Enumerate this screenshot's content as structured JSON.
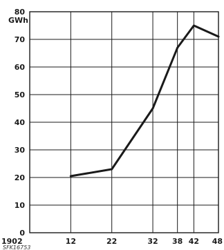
{
  "chart_data": {
    "type": "line",
    "ylabel": "GWh",
    "ylim": [
      0,
      80
    ],
    "yticks": [
      0,
      10,
      20,
      30,
      40,
      50,
      60,
      70,
      80
    ],
    "xticks": [
      "1902",
      "12",
      "22",
      "32",
      "38",
      "42",
      "48"
    ],
    "xtick_years": [
      1902,
      1912,
      1922,
      1932,
      1938,
      1942,
      1948
    ],
    "grid": true,
    "series": [
      {
        "x": [
          1912,
          1922,
          1932,
          1938,
          1942,
          1948
        ],
        "y": [
          20.5,
          23,
          45,
          67,
          75,
          71
        ]
      }
    ],
    "annotation": "SFK16753"
  },
  "colors": {
    "ink": "#1a1a1a"
  }
}
